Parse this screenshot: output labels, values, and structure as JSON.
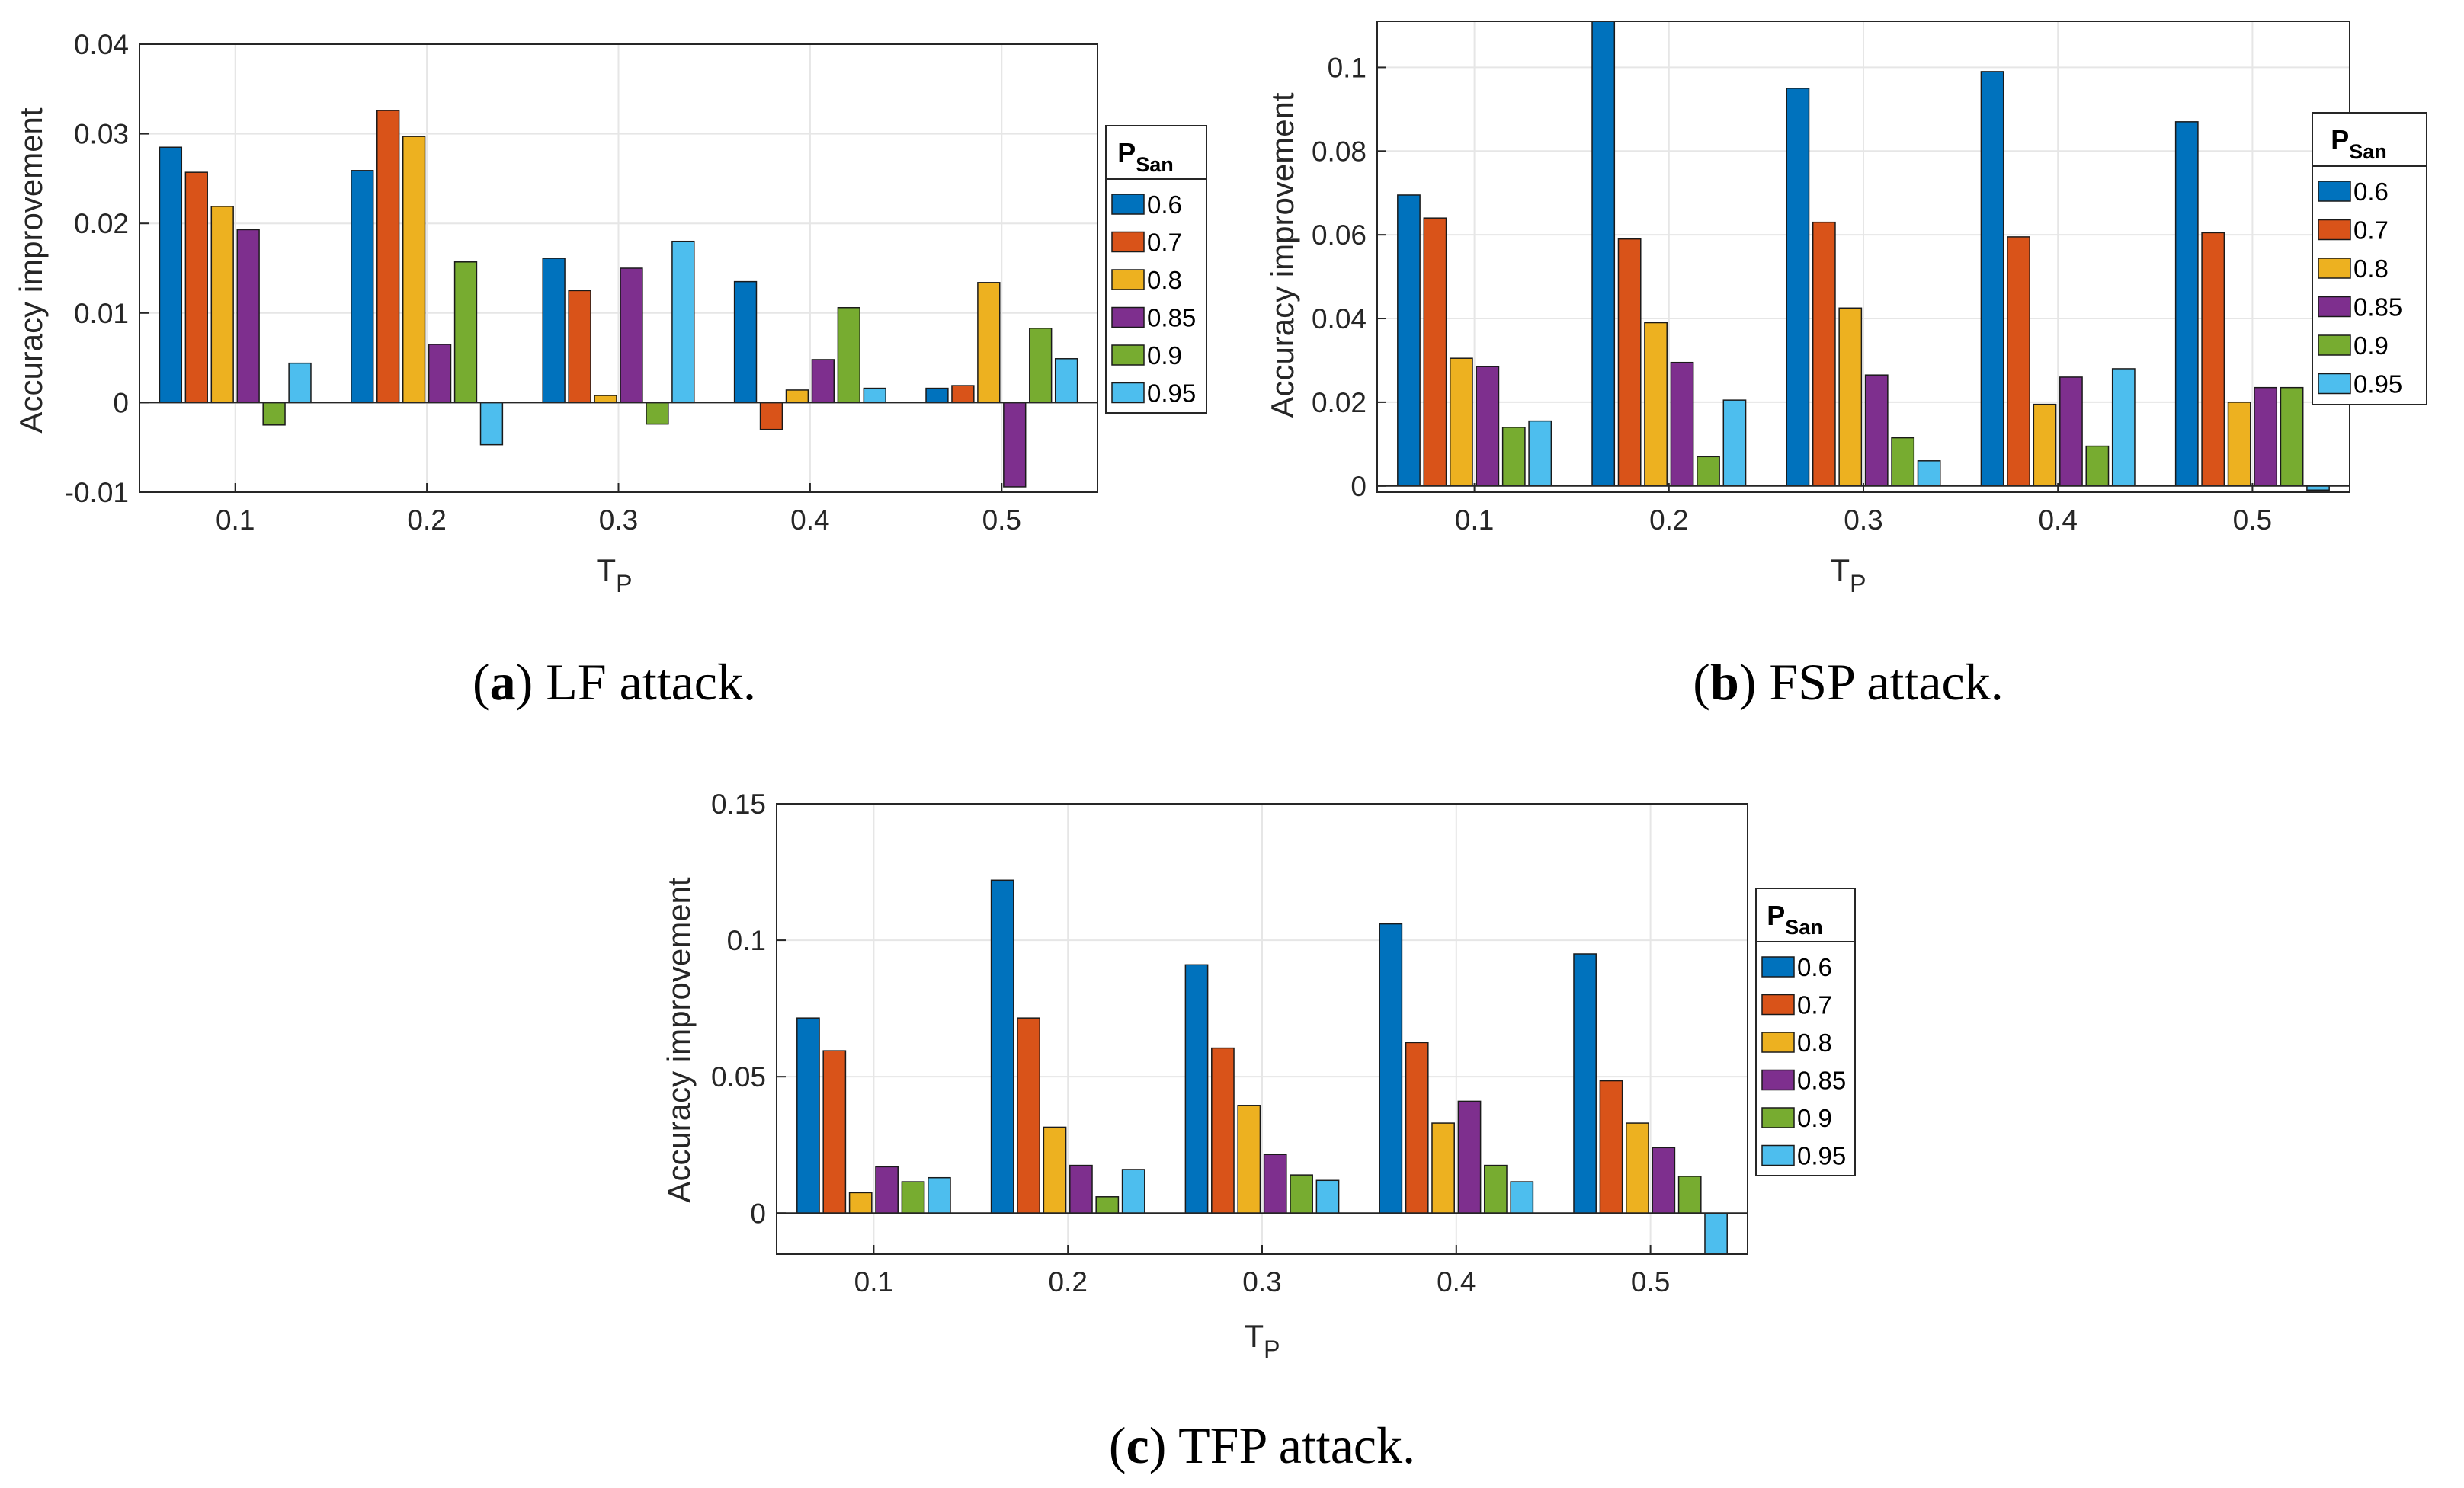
{
  "colors": [
    "#0072BD",
    "#D95319",
    "#EDB120",
    "#7E2F8E",
    "#77AC30",
    "#4DBEEE"
  ],
  "legend_title_main": "P",
  "legend_title_sub": "San",
  "chart_data": [
    {
      "type": "bar",
      "caption_letter": "a",
      "caption_text": ") LF attack.",
      "xlabel_main": "T",
      "xlabel_sub": "P",
      "ylabel": "Accuracy improvement",
      "categories": [
        "0.1",
        "0.2",
        "0.3",
        "0.4",
        "0.5"
      ],
      "ylim": [
        -0.01,
        0.04
      ],
      "yticks": [
        -0.01,
        0,
        0.01,
        0.02,
        0.03,
        0.04
      ],
      "ytick_labels": [
        "-0.01",
        "0",
        "0.01",
        "0.02",
        "0.03",
        "0.04"
      ],
      "grid": true,
      "legend_position": "right",
      "series": [
        {
          "name": "0.6",
          "values": [
            0.0285,
            0.0259,
            0.0161,
            0.0135,
            0.0016
          ]
        },
        {
          "name": "0.7",
          "values": [
            0.0257,
            0.0326,
            0.0125,
            -0.003,
            0.0019
          ]
        },
        {
          "name": "0.8",
          "values": [
            0.0219,
            0.0297,
            0.0008,
            0.0014,
            0.0134
          ]
        },
        {
          "name": "0.85",
          "values": [
            0.0193,
            0.0065,
            0.015,
            0.0048,
            -0.0094
          ]
        },
        {
          "name": "0.9",
          "values": [
            -0.0025,
            0.0157,
            -0.0024,
            0.0106,
            0.0083
          ]
        },
        {
          "name": "0.95",
          "values": [
            0.0044,
            -0.0047,
            0.018,
            0.0016,
            0.0049
          ]
        }
      ]
    },
    {
      "type": "bar",
      "caption_letter": "b",
      "caption_text": ") FSP attack.",
      "xlabel_main": "T",
      "xlabel_sub": "P",
      "ylabel": "Accuracy improvement",
      "categories": [
        "0.1",
        "0.2",
        "0.3",
        "0.4",
        "0.5"
      ],
      "ylim": [
        -0.0015,
        0.111
      ],
      "yticks": [
        0,
        0.02,
        0.04,
        0.06,
        0.08,
        0.1
      ],
      "ytick_labels": [
        "0",
        "0.02",
        "0.04",
        "0.06",
        "0.08",
        "0.1"
      ],
      "grid": true,
      "legend_position": "right",
      "series": [
        {
          "name": "0.6",
          "values": [
            0.0695,
            0.111,
            0.095,
            0.099,
            0.087
          ]
        },
        {
          "name": "0.7",
          "values": [
            0.064,
            0.059,
            0.063,
            0.0595,
            0.0605
          ]
        },
        {
          "name": "0.8",
          "values": [
            0.0305,
            0.039,
            0.0425,
            0.0195,
            0.02
          ]
        },
        {
          "name": "0.85",
          "values": [
            0.0285,
            0.0295,
            0.0265,
            0.026,
            0.0235
          ]
        },
        {
          "name": "0.9",
          "values": [
            0.014,
            0.007,
            0.0115,
            0.0095,
            0.0235
          ]
        },
        {
          "name": "0.95",
          "values": [
            0.0155,
            0.0205,
            0.006,
            0.028,
            -0.001
          ]
        }
      ]
    },
    {
      "type": "bar",
      "caption_letter": "c",
      "caption_text": ") TFP attack.",
      "xlabel_main": "T",
      "xlabel_sub": "P",
      "ylabel": "Accuracy improvement",
      "categories": [
        "0.1",
        "0.2",
        "0.3",
        "0.4",
        "0.5"
      ],
      "ylim": [
        -0.015,
        0.15
      ],
      "yticks": [
        0,
        0.05,
        0.1,
        0.15
      ],
      "ytick_labels": [
        "0",
        "0.05",
        "0.1",
        "0.15"
      ],
      "grid": true,
      "legend_position": "right",
      "series": [
        {
          "name": "0.6",
          "values": [
            0.0715,
            0.122,
            0.091,
            0.106,
            0.095
          ]
        },
        {
          "name": "0.7",
          "values": [
            0.0595,
            0.0715,
            0.0605,
            0.0625,
            0.0485
          ]
        },
        {
          "name": "0.8",
          "values": [
            0.0075,
            0.0315,
            0.0395,
            0.033,
            0.033
          ]
        },
        {
          "name": "0.85",
          "values": [
            0.017,
            0.0175,
            0.0215,
            0.041,
            0.024
          ]
        },
        {
          "name": "0.9",
          "values": [
            0.0115,
            0.006,
            0.014,
            0.0175,
            0.0135
          ]
        },
        {
          "name": "0.95",
          "values": [
            0.013,
            0.016,
            0.012,
            0.0115,
            -0.015
          ]
        }
      ]
    }
  ]
}
